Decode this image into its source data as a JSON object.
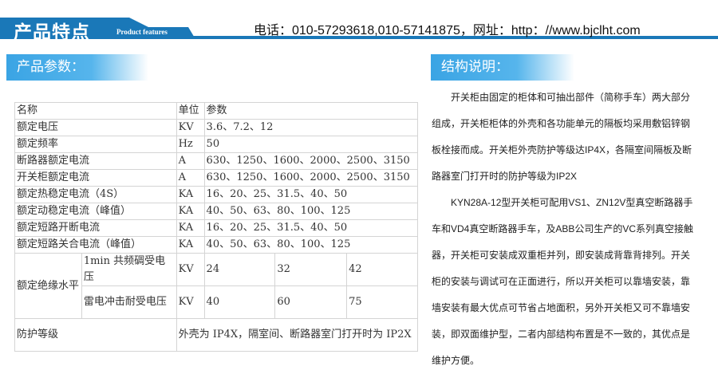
{
  "header": {
    "title": "产品特点",
    "subtitle": "Product features",
    "contact": "电话：010-57293618,010-57141875，网址：http：//www.bjclht.com",
    "accent": "#1a78b8"
  },
  "params": {
    "heading": "产品参数：",
    "header_row": [
      "名称",
      "单位",
      "参数"
    ],
    "rows": [
      [
        "额定电压",
        "KV",
        "3.6、7.2、12"
      ],
      [
        "额定频率",
        "Hz",
        "50"
      ],
      [
        "断路器额定电流",
        "A",
        "630、1250、1600、2000、2500、3150"
      ],
      [
        "开关柜额定电流",
        "A",
        "630、1250、1600、2000、2500、3150"
      ],
      [
        "额定热稳定电流（4S）",
        "KA",
        "16、20、25、31.5、40、50"
      ],
      [
        "额定动稳定电流（峰值）",
        "KA",
        "40、50、63、80、100、125"
      ],
      [
        "额定短路开断电流",
        "KA",
        "16、20、25、31.5、40、50"
      ],
      [
        "额定短路关合电流（峰值）",
        "KA",
        "40、50、63、80、100、125"
      ]
    ],
    "insulation": {
      "label": "额定绝缘水平",
      "rows": [
        {
          "name": "1min 共频碉受电压",
          "unit": "KV",
          "values": [
            "24",
            "32",
            "42"
          ]
        },
        {
          "name": "雷电冲击耐受电压",
          "unit": "KV",
          "values": [
            "40",
            "60",
            "75"
          ]
        }
      ]
    },
    "protection": {
      "label": "防护等级",
      "value": "外壳为 IP4X，隔室间、断路器室门打开时为 IP2X"
    }
  },
  "structure": {
    "heading": "结构说明：",
    "lines": [
      "　　开关柜由固定的柜体和可抽出部件（简称手车）两大部分",
      "组成，开关柜柜体的外壳和各功能单元的隔板均采用敷铝锌钢",
      "板栓接而成。开关柜外壳防护等级达IP4X，各隔室间隔板及断",
      "路器室门打开时的防护等级为IP2X",
      "　　KYN28A-12型开关柜可配用VS1、ZN12V型真空断路器手",
      "车和VD4真空断路器手车，及ABB公司生产的VC系列真空接触",
      "器，开关柜可安装成双重柜并列，即安装成背靠背排列。开关",
      "柜的安装与调试可在正面进行，所以开关柜可以靠墙安装，靠",
      "墙安装有最大优点可节省占地面积，另外开关柜又可不靠墙安",
      "装，即双面维护型，二者内部结构布置是不一致的，其优点是",
      "维护方便。"
    ]
  }
}
